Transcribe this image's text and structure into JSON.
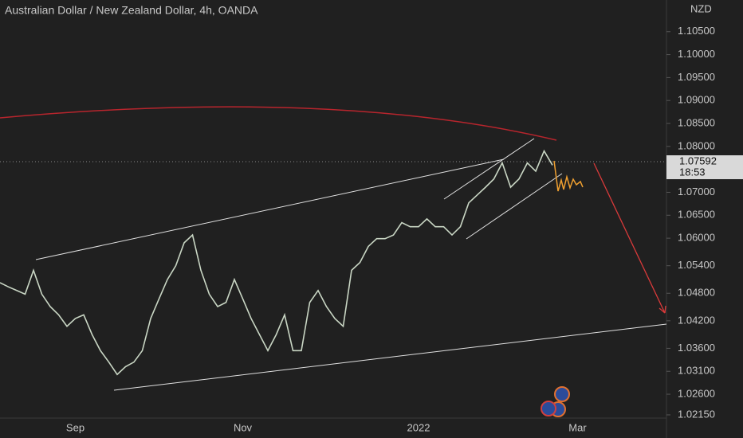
{
  "chart_data": {
    "type": "line",
    "title": "Australian Dollar / New Zealand Dollar, 4h, OANDA",
    "currency": "NZD",
    "price_label": "1.07592",
    "countdown": "18:53",
    "categories": [
      null,
      null,
      null,
      null,
      null,
      null,
      null,
      null,
      null,
      "Sep",
      null,
      null,
      null,
      null,
      null,
      null,
      null,
      null,
      null,
      null,
      null,
      null,
      null,
      null,
      null,
      null,
      null,
      null,
      null,
      "Nov",
      null,
      null,
      null,
      null,
      null,
      null,
      null,
      null,
      null,
      null,
      null,
      null,
      null,
      null,
      null,
      null,
      null,
      null,
      null,
      null,
      "2022",
      null,
      null,
      null,
      null,
      null,
      null,
      null,
      null,
      null,
      null,
      null,
      null,
      null,
      null,
      null,
      null,
      null,
      null,
      "Mar",
      null,
      null,
      null,
      null,
      null,
      null,
      null,
      null,
      null,
      null
    ],
    "series": [
      {
        "name": "AUDNZD",
        "color": "#c9d6c4",
        "values": [
          1.0503,
          1.0494,
          1.0486,
          1.0478,
          1.053,
          1.0478,
          1.0451,
          1.0433,
          1.0408,
          1.0425,
          1.0433,
          1.039,
          1.0355,
          1.033,
          1.0303,
          1.032,
          1.033,
          1.0355,
          1.0425,
          1.0468,
          1.051,
          1.054,
          1.059,
          1.0607,
          1.053,
          1.0478,
          1.0451,
          1.046,
          1.051,
          1.0468,
          1.0425,
          1.039,
          1.0355,
          1.039,
          1.0433,
          1.0355,
          1.0355,
          1.046,
          1.0486,
          1.0451,
          1.0425,
          1.0408,
          1.053,
          1.0547,
          1.0582,
          1.0599,
          1.0599,
          1.0607,
          1.0634,
          1.0625,
          1.0625,
          1.0642,
          1.0625,
          1.0625,
          1.0607,
          1.0625,
          1.0677,
          1.0694,
          1.0711,
          1.0729,
          1.0764,
          1.0711,
          1.0729,
          1.0764,
          1.0746,
          1.079,
          1.0759,
          null,
          null,
          null,
          null,
          null,
          null,
          null,
          null,
          null,
          null,
          null,
          null,
          null
        ]
      }
    ],
    "ylim": [
      1.0208,
      1.1119
    ],
    "yticks": [
      {
        "value": 1.105,
        "label": "1.10500"
      },
      {
        "value": 1.1,
        "label": "1.10000"
      },
      {
        "value": 1.095,
        "label": "1.09500"
      },
      {
        "value": 1.09,
        "label": "1.09000"
      },
      {
        "value": 1.085,
        "label": "1.08500"
      },
      {
        "value": 1.08,
        "label": "1.08000"
      },
      {
        "value": 1.07,
        "label": "1.07000"
      },
      {
        "value": 1.065,
        "label": "1.06500"
      },
      {
        "value": 1.06,
        "label": "1.06000"
      },
      {
        "value": 1.054,
        "label": "1.05400"
      },
      {
        "value": 1.048,
        "label": "1.04800"
      },
      {
        "value": 1.042,
        "label": "1.04200"
      },
      {
        "value": 1.036,
        "label": "1.03600"
      },
      {
        "value": 1.031,
        "label": "1.03100"
      },
      {
        "value": 1.026,
        "label": "1.02600"
      },
      {
        "value": 1.0215,
        "label": "1.02150"
      }
    ]
  }
}
